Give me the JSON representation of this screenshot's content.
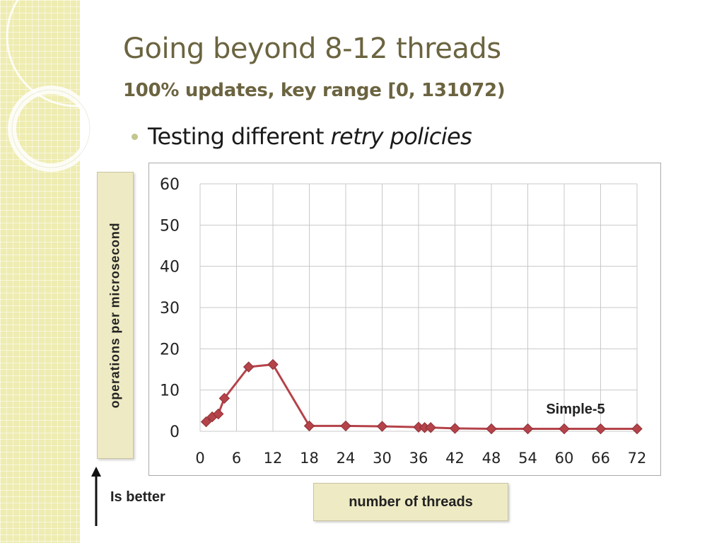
{
  "slide": {
    "title": "Going beyond 8-12 threads",
    "subtitle": "100% updates, key range [0, 131072)",
    "bullet_prefix": "Testing different ",
    "bullet_emphasis": "retry policies",
    "y_axis_box_label": "operations per microsecond",
    "x_axis_box_label": "number of threads",
    "arrow_label": "Is better",
    "theme_colors": {
      "background_band": "#eeecb0",
      "title_text": "#6b6440",
      "label_box": "#eeeac3",
      "series_color": "#b5434a"
    }
  },
  "chart_data": {
    "type": "line",
    "xlabel": "",
    "ylabel": "",
    "xlim": [
      0,
      72
    ],
    "ylim": [
      0,
      60
    ],
    "x_ticks": [
      0,
      6,
      12,
      18,
      24,
      30,
      36,
      42,
      48,
      54,
      60,
      66,
      72
    ],
    "y_ticks": [
      0,
      10,
      20,
      30,
      40,
      50,
      60
    ],
    "grid": true,
    "series": [
      {
        "name": "Simple-5",
        "color": "#b5434a",
        "marker": "diamond",
        "points": [
          [
            1,
            2.3
          ],
          [
            2,
            3.5
          ],
          [
            3,
            4.2
          ],
          [
            4,
            8.0
          ],
          [
            8,
            15.6
          ],
          [
            12,
            16.2
          ],
          [
            18,
            1.3
          ],
          [
            24,
            1.3
          ],
          [
            30,
            1.2
          ],
          [
            36,
            1.0
          ],
          [
            37,
            0.9
          ],
          [
            38,
            0.9
          ],
          [
            42,
            0.7
          ],
          [
            48,
            0.6
          ],
          [
            54,
            0.6
          ],
          [
            60,
            0.6
          ],
          [
            66,
            0.6
          ],
          [
            72,
            0.6
          ]
        ]
      }
    ],
    "series_labels": [
      {
        "text": "Simple-5"
      }
    ]
  }
}
